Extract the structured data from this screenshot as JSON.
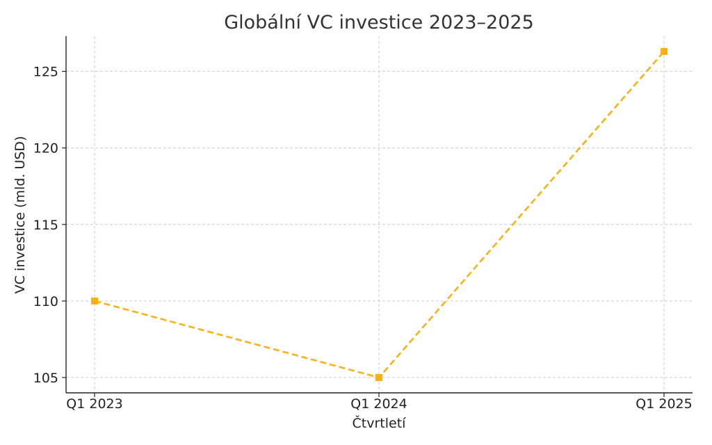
{
  "chart_data": {
    "type": "line",
    "title": "Globální VC investice 2023–2025",
    "xlabel": "Čtvrtletí",
    "ylabel": "VC investice (mld. USD)",
    "categories": [
      "Q1 2023",
      "Q1 2024",
      "Q1 2025"
    ],
    "series": [
      {
        "values": [
          110,
          105,
          126.3
        ],
        "color": "#FBB116",
        "line_style": "dashed",
        "marker": "square"
      }
    ],
    "yticks": [
      105,
      110,
      115,
      120,
      125
    ],
    "ylim": [
      104,
      127.3
    ],
    "grid": true
  }
}
